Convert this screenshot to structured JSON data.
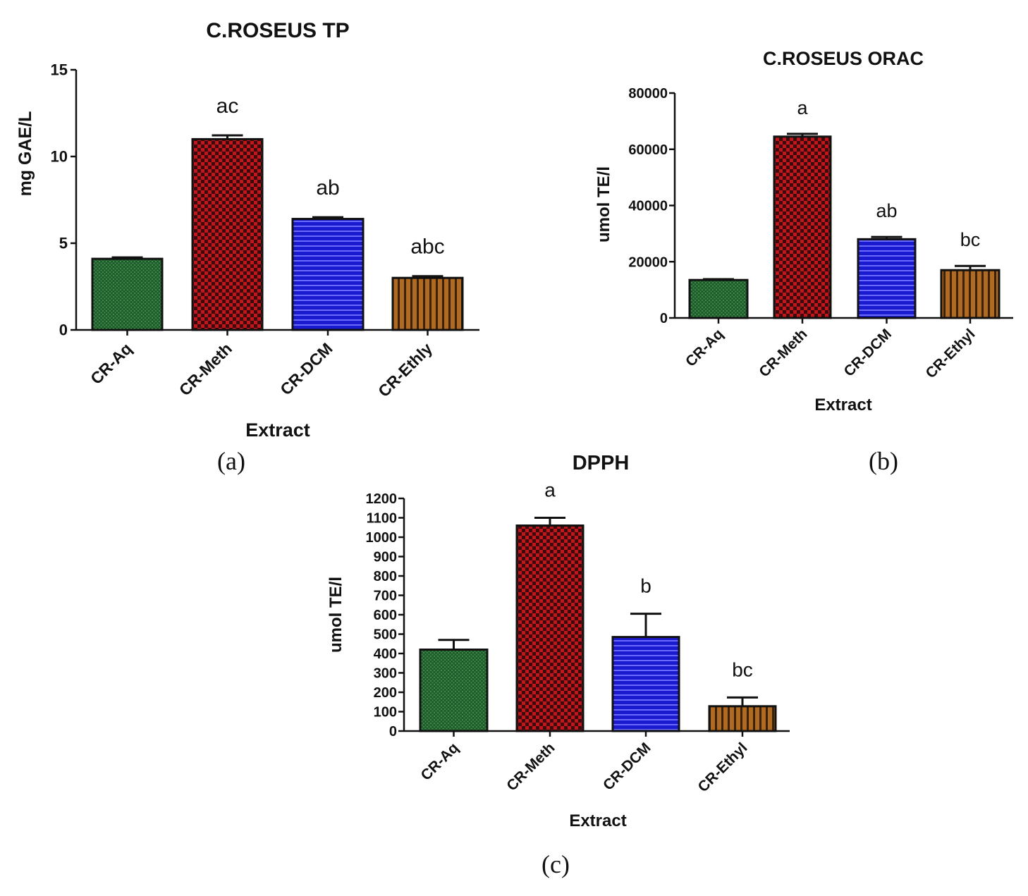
{
  "chart_data": [
    {
      "type": "bar",
      "panel_label": "(a)",
      "title": "C.ROSEUS TP",
      "xlabel": "Extract",
      "ylabel": "mg GAE/L",
      "ylim": [
        0,
        15
      ],
      "yticks": [
        "0",
        "5",
        "10",
        "15"
      ],
      "categories": [
        "CR-Aq",
        "CR-Meth",
        "CR-DCM",
        "CR-Ethly"
      ],
      "values": [
        4.1,
        11.0,
        6.4,
        3.0
      ],
      "errors": [
        0.08,
        0.22,
        0.1,
        0.1
      ],
      "significance": [
        "",
        "ac",
        "ab",
        "abc"
      ]
    },
    {
      "type": "bar",
      "panel_label": "(b)",
      "title": "C.ROSEUS ORAC",
      "xlabel": "Extract",
      "ylabel": "umol TE/l",
      "ylim": [
        0,
        80000
      ],
      "yticks": [
        "0",
        "20000",
        "40000",
        "60000",
        "80000"
      ],
      "categories": [
        "CR-Aq",
        "CR-Meth",
        "CR-DCM",
        "CR-Ethyl"
      ],
      "values": [
        13500,
        64500,
        28000,
        17000
      ],
      "errors": [
        300,
        1000,
        800,
        1500
      ],
      "significance": [
        "",
        "a",
        "ab",
        "bc"
      ]
    },
    {
      "type": "bar",
      "panel_label": "(c)",
      "title": "DPPH",
      "xlabel": "Extract",
      "ylabel": "umol TE/l",
      "ylim": [
        0,
        1200
      ],
      "yticks": [
        "0",
        "100",
        "200",
        "300",
        "400",
        "500",
        "600",
        "700",
        "800",
        "900",
        "1000",
        "1100",
        "1200"
      ],
      "categories": [
        "CR-Aq",
        "CR-Meth",
        "CR-DCM",
        "CR-Ethyl"
      ],
      "values": [
        420,
        1060,
        485,
        128
      ],
      "errors": [
        50,
        40,
        120,
        45
      ],
      "significance": [
        "",
        "a",
        "b",
        "bc"
      ]
    }
  ],
  "colors": {
    "fills": [
      "#1f5a2a",
      "#b3151b",
      "#1a1acf",
      "#a8641f"
    ],
    "accents": [
      "#3f8a4a",
      "#3a0a0c",
      "#6a6aff",
      "#3a2208"
    ]
  }
}
